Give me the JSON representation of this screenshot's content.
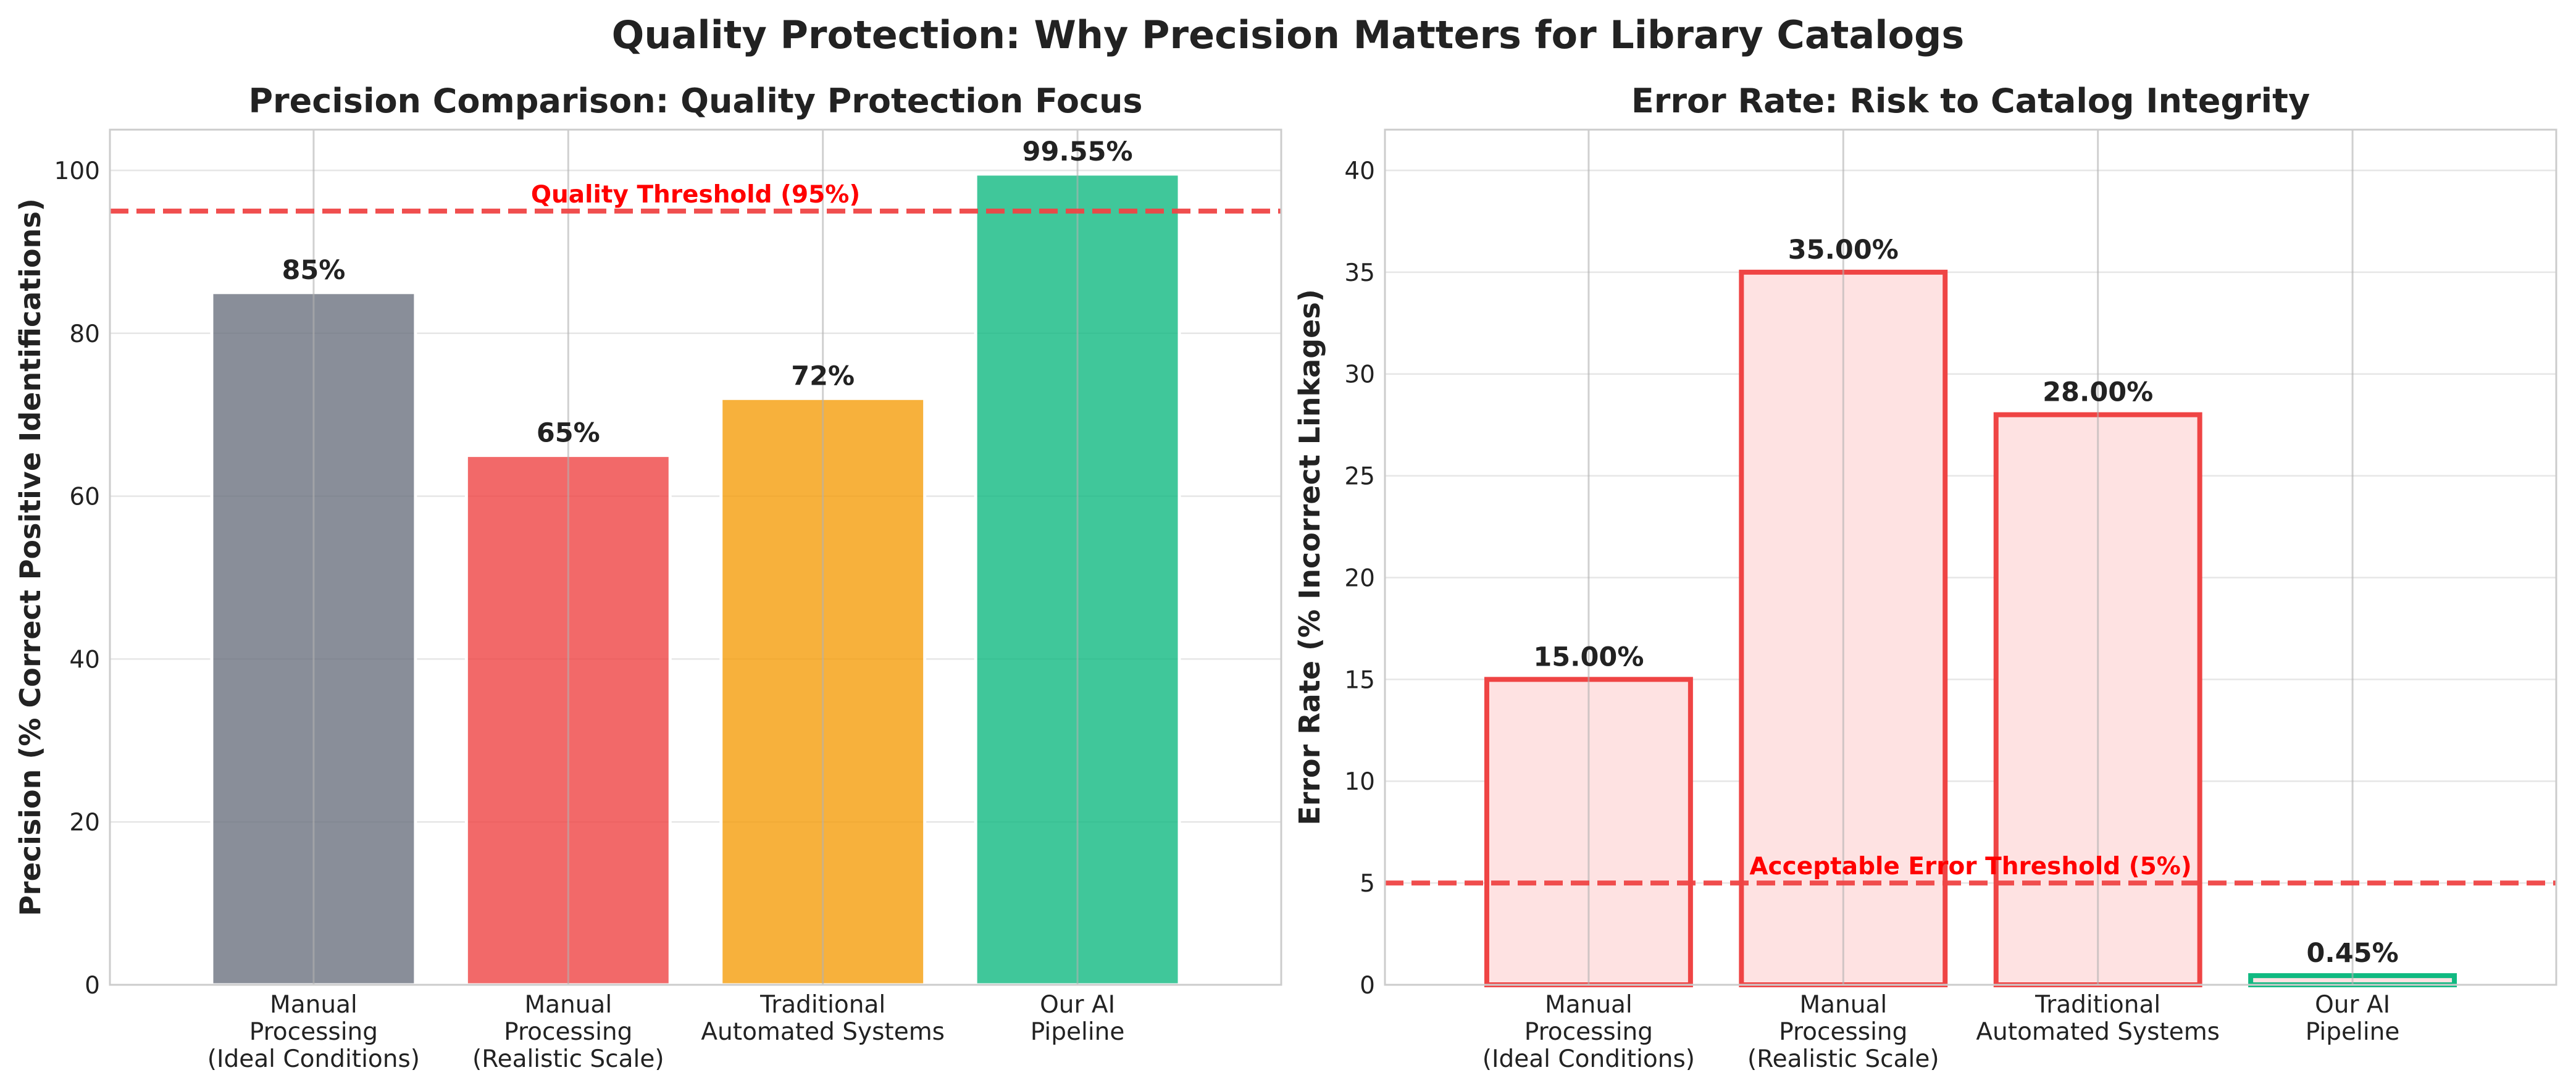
{
  "suptitle": "Quality Protection: Why Precision Matters for Library Catalogs",
  "chart_data": [
    {
      "type": "bar",
      "title": "Precision Comparison: Quality Protection Focus",
      "xlabel": "",
      "ylabel": "Precision (% Correct Positive Identifications)",
      "categories": [
        [
          "Manual",
          "Processing",
          "(Ideal Conditions)"
        ],
        [
          "Manual",
          "Processing",
          "(Realistic Scale)"
        ],
        [
          "Traditional",
          "Automated Systems"
        ],
        [
          "Our AI",
          "Pipeline"
        ]
      ],
      "values": [
        85,
        65,
        72,
        99.55
      ],
      "value_labels": [
        "85%",
        "65%",
        "72%",
        "99.55%"
      ],
      "ylim": [
        0,
        105
      ],
      "yticks": [
        0,
        20,
        40,
        60,
        80,
        100
      ],
      "grid": true,
      "bar_colors": [
        "#6b7280",
        "#ef4444",
        "#f59e0b",
        "#10b981"
      ],
      "threshold": {
        "value": 95,
        "label": "Quality Threshold (95%)",
        "color": "#ef4444",
        "text_color": "#ff0000"
      }
    },
    {
      "type": "bar",
      "title": "Error Rate: Risk to Catalog Integrity",
      "xlabel": "",
      "ylabel": "Error Rate (% Incorrect Linkages)",
      "categories": [
        [
          "Manual",
          "Processing",
          "(Ideal Conditions)"
        ],
        [
          "Manual",
          "Processing",
          "(Realistic Scale)"
        ],
        [
          "Traditional",
          "Automated Systems"
        ],
        [
          "Our AI",
          "Pipeline"
        ]
      ],
      "values": [
        15,
        35,
        28,
        0.45
      ],
      "value_labels": [
        "15.00%",
        "35.00%",
        "28.00%",
        "0.45%"
      ],
      "ylim": [
        0,
        42
      ],
      "yticks": [
        0,
        5,
        10,
        15,
        20,
        25,
        30,
        35,
        40
      ],
      "grid": true,
      "bar_fill": "#fee2e2",
      "bar_edges": [
        "#ef4444",
        "#ef4444",
        "#ef4444",
        "#10b981"
      ],
      "threshold": {
        "value": 5,
        "label": "Acceptable Error Threshold (5%)",
        "color": "#ef4444",
        "text_color": "#ff0000"
      }
    }
  ]
}
